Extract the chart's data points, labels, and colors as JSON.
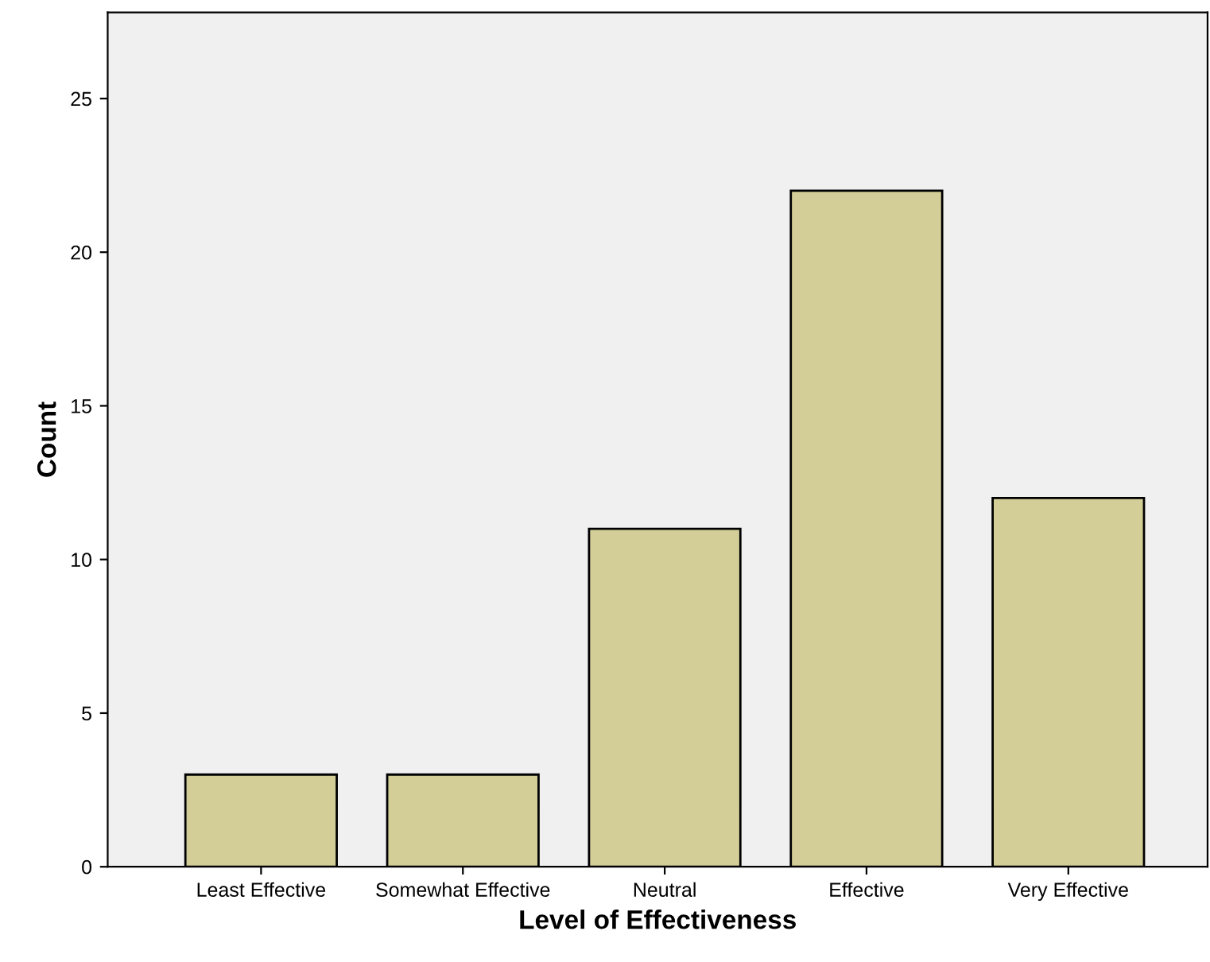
{
  "chart_data": {
    "type": "bar",
    "xlabel": "Level of Effectiveness",
    "ylabel": "Count",
    "categories": [
      "Least Effective",
      "Somewhat Effective",
      "Neutral",
      "Effective",
      "Very Effective"
    ],
    "values": [
      3,
      3,
      11,
      22,
      12
    ],
    "color": "#d3ce97",
    "ylim": [
      0,
      27.8
    ],
    "yticks": [
      0,
      5,
      10,
      15,
      20,
      25
    ],
    "grid": false,
    "legend": false
  }
}
